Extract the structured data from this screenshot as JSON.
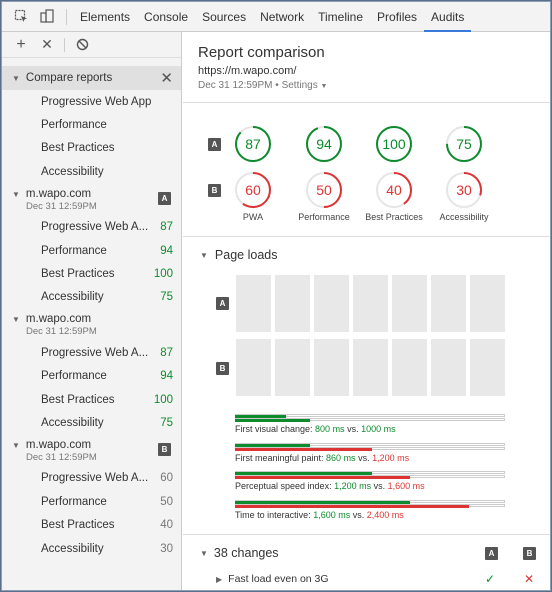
{
  "toolbar": {
    "icons": [
      "inspect-icon",
      "device-icon"
    ],
    "tabs": [
      "Elements",
      "Console",
      "Sources",
      "Network",
      "Timeline",
      "Profiles",
      "Audits"
    ],
    "active_tab": "Audits"
  },
  "sidebar": {
    "compare_label": "Compare reports",
    "compare_items": [
      "Progressive Web App",
      "Performance",
      "Best Practices",
      "Accessibility"
    ],
    "reports": [
      {
        "site": "m.wapo.com",
        "date": "Dec 31 12:59PM",
        "badge": "A",
        "items": [
          {
            "label": "Progressive Web A...",
            "score": "87"
          },
          {
            "label": "Performance",
            "score": "94"
          },
          {
            "label": "Best Practices",
            "score": "100"
          },
          {
            "label": "Accessibility",
            "score": "75"
          }
        ]
      },
      {
        "site": "m.wapo.com",
        "date": "Dec 31 12:59PM",
        "badge": "",
        "items": [
          {
            "label": "Progressive Web A...",
            "score": "87"
          },
          {
            "label": "Performance",
            "score": "94"
          },
          {
            "label": "Best Practices",
            "score": "100"
          },
          {
            "label": "Accessibility",
            "score": "75"
          }
        ]
      },
      {
        "site": "m.wapo.com",
        "date": "Dec 31 12:59PM",
        "badge": "B",
        "items": [
          {
            "label": "Progressive Web A...",
            "score": "60"
          },
          {
            "label": "Performance",
            "score": "50"
          },
          {
            "label": "Best Practices",
            "score": "40"
          },
          {
            "label": "Accessibility",
            "score": "30"
          }
        ]
      }
    ]
  },
  "main": {
    "title": "Report comparison",
    "url": "https://m.wapo.com/",
    "date": "Dec 31 12:59PM",
    "settings": "Settings",
    "gauges": {
      "A": [
        {
          "score": "87",
          "value": 87
        },
        {
          "score": "94",
          "value": 94
        },
        {
          "score": "100",
          "value": 100
        },
        {
          "score": "75",
          "value": 75
        }
      ],
      "B": [
        {
          "score": "60",
          "value": 60
        },
        {
          "score": "50",
          "value": 50
        },
        {
          "score": "40",
          "value": 40
        },
        {
          "score": "30",
          "value": 30
        }
      ],
      "labels": [
        "PWA",
        "Performance",
        "Best Practices",
        "Accessibility"
      ]
    },
    "page_loads_title": "Page loads",
    "metrics": [
      {
        "label": "First visual change:",
        "a": "800 ms",
        "b": "1000 ms",
        "a_pct": 19,
        "b_pct": 28,
        "b_color": "green"
      },
      {
        "label": "First meaningful paint:",
        "a": "860 ms",
        "b": "1,200 ms",
        "a_pct": 28,
        "b_pct": 51,
        "b_color": "red"
      },
      {
        "label": "Perceptual speed index:",
        "a": "1,200 ms",
        "b": "1,600 ms",
        "a_pct": 51,
        "b_pct": 65,
        "b_color": "red"
      },
      {
        "label": "Time to interactive:",
        "a": "1,600 ms",
        "b": "2,400 ms",
        "a_pct": 65,
        "b_pct": 87,
        "b_color": "red"
      }
    ],
    "vs": "vs.",
    "changes_title": "38 changes",
    "change_items": [
      {
        "label": "Fast load even on 3G",
        "a": "✓",
        "b": "✕"
      }
    ]
  }
}
